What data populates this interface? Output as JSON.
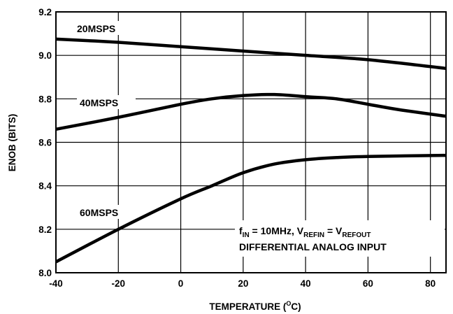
{
  "chart_data": {
    "type": "line",
    "xlabel_main": "TEMPERATURE (",
    "xlabel_sup": "O",
    "xlabel_end": "C)",
    "ylabel": "ENOB (BITS)",
    "xlim": [
      -40,
      85
    ],
    "ylim": [
      8.0,
      9.2
    ],
    "x_ticks": [
      -40,
      -20,
      0,
      20,
      40,
      60,
      80
    ],
    "x_tick_labels": [
      "-40",
      "-20",
      "0",
      "20",
      "40",
      "60",
      "80"
    ],
    "y_ticks": [
      8.0,
      8.2,
      8.4,
      8.6,
      8.8,
      9.0,
      9.2
    ],
    "y_tick_labels": [
      "8.0",
      "8.2",
      "8.4",
      "8.6",
      "8.8",
      "9.0",
      "9.2"
    ],
    "grid": true,
    "series": [
      {
        "name": "20MSPS",
        "x": [
          -40,
          -20,
          0,
          20,
          40,
          60,
          85
        ],
        "y": [
          9.075,
          9.06,
          9.04,
          9.02,
          9.0,
          8.98,
          8.94
        ]
      },
      {
        "name": "40MSPS",
        "x": [
          -40,
          -20,
          0,
          10,
          20,
          30,
          40,
          50,
          60,
          70,
          85
        ],
        "y": [
          8.66,
          8.715,
          8.775,
          8.8,
          8.815,
          8.82,
          8.81,
          8.8,
          8.775,
          8.75,
          8.72
        ]
      },
      {
        "name": "60MSPS",
        "x": [
          -40,
          -20,
          0,
          10,
          20,
          30,
          40,
          50,
          60,
          85
        ],
        "y": [
          8.05,
          8.2,
          8.34,
          8.4,
          8.46,
          8.5,
          8.52,
          8.53,
          8.535,
          8.54
        ]
      }
    ],
    "annotation": {
      "line1_f": "f",
      "line1_in_sub": "IN",
      "line1_mid": " = 10MHz, V",
      "line1_refin_sub": "REFIN",
      "line1_eq": " = V",
      "line1_refout_sub": "REFOUT",
      "line2": "DIFFERENTIAL ANALOG INPUT"
    }
  }
}
